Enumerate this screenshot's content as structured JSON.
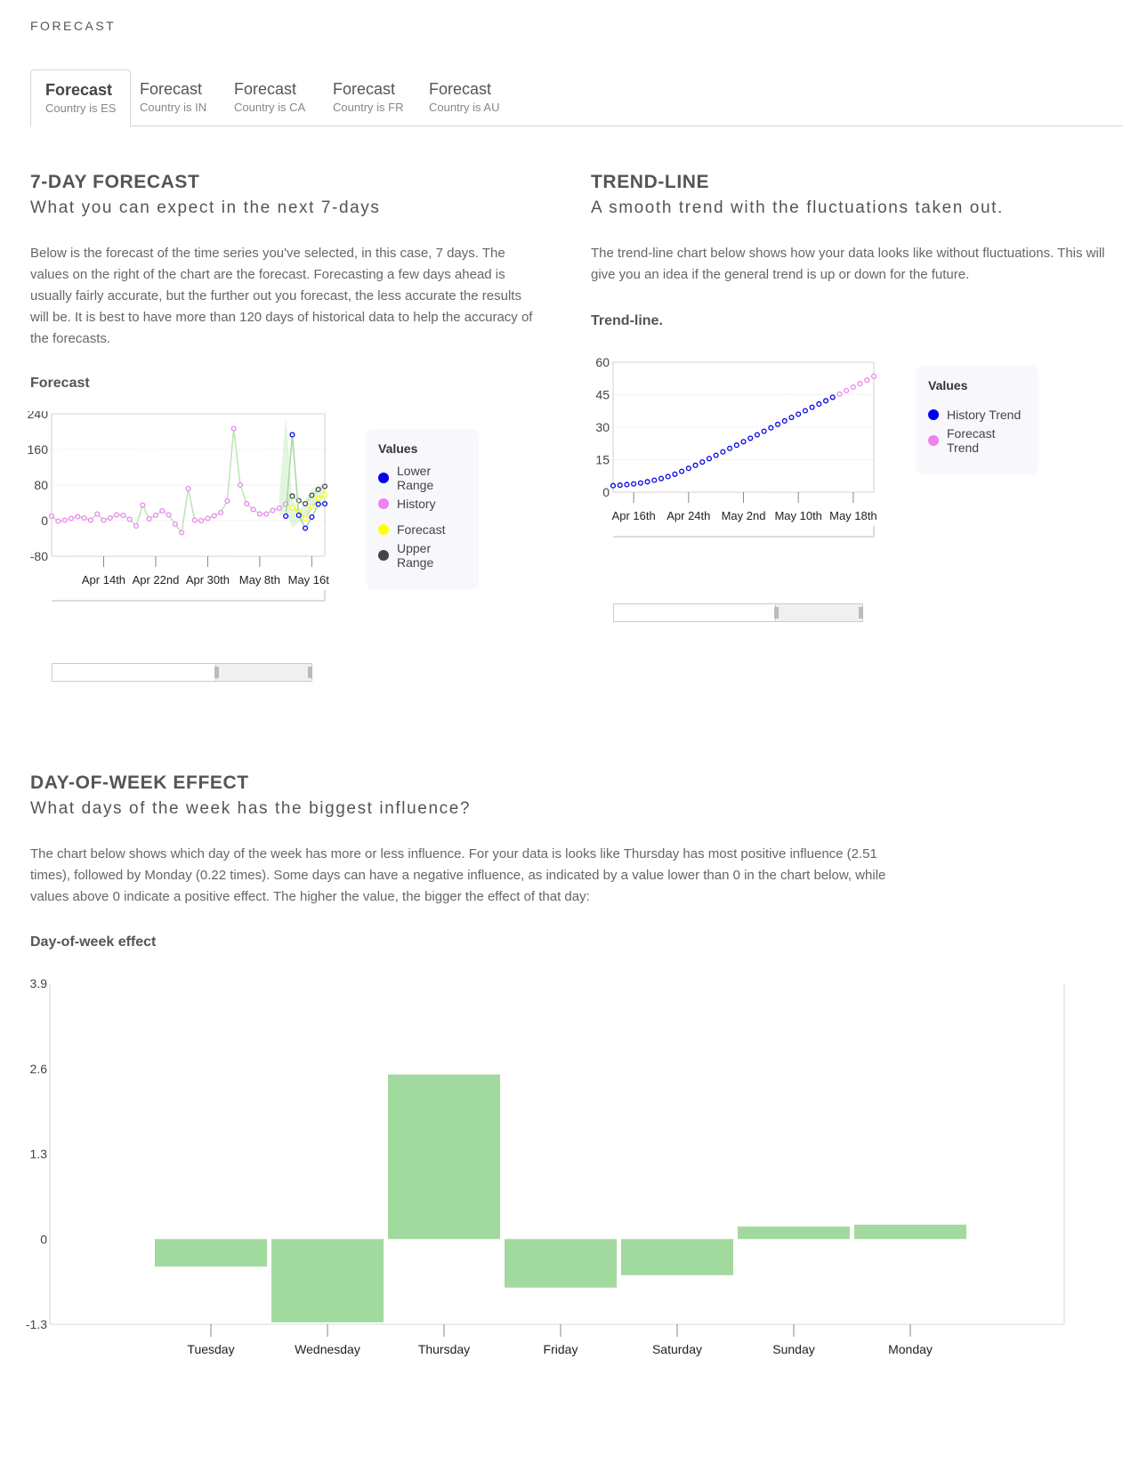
{
  "page": {
    "title": "FORECAST"
  },
  "tabs": [
    {
      "title": "Forecast",
      "subtitle": "Country is ES",
      "active": true
    },
    {
      "title": "Forecast",
      "subtitle": "Country is IN",
      "active": false
    },
    {
      "title": "Forecast",
      "subtitle": "Country is CA",
      "active": false
    },
    {
      "title": "Forecast",
      "subtitle": "Country is FR",
      "active": false
    },
    {
      "title": "Forecast",
      "subtitle": "Country is AU",
      "active": false
    }
  ],
  "forecast_section": {
    "heading": "7-DAY FORECAST",
    "subheading": "What you can expect in the next 7-days",
    "description": "Below is the forecast of the time series you've selected, in this case, 7 days. The values on the right of the chart are the forecast. Forecasting a few days ahead is usually fairly accurate, but the further out you forecast, the less accurate the results will be. It is best to have more than 120 days of historical data to help the accuracy of the forecasts.",
    "chart_title": "Forecast",
    "legend": {
      "title": "Values",
      "items": [
        {
          "label": "Lower Range",
          "color": "#0000ee"
        },
        {
          "label": "History",
          "color": "#ee82ee"
        },
        {
          "label": "Forecast",
          "color": "#ffff00"
        },
        {
          "label": "Upper Range",
          "color": "#444444"
        }
      ]
    }
  },
  "trend_section": {
    "heading": "TREND-LINE",
    "subheading": "A smooth trend with the fluctuations taken out.",
    "description": "The trend-line chart below shows how your data looks like without fluctuations. This will give you an idea if the general trend is up or down for the future.",
    "chart_title": "Trend-line.",
    "legend": {
      "title": "Values",
      "items": [
        {
          "label": "History Trend",
          "color": "#0000ee"
        },
        {
          "label": "Forecast Trend",
          "color": "#ee82ee"
        }
      ]
    }
  },
  "dow_section": {
    "heading": "DAY-OF-WEEK EFFECT",
    "subheading": "What days of the week has the biggest influence?",
    "description": "The chart below shows which day of the week has more or less influence. For your data is looks like Thursday has most positive influence (2.51 times), followed by Monday (0.22 times). Some days can have a negative influence, as indicated by a value lower than 0 in the chart below, while values above 0 indicate a positive effect. The higher the value, the bigger the effect of that day:",
    "chart_title": "Day-of-week effect"
  },
  "chart_data": [
    {
      "id": "forecast",
      "type": "line",
      "ylim": [
        -80,
        240
      ],
      "yticks": [
        -80,
        0,
        80,
        160,
        240
      ],
      "xticks": [
        {
          "day": 8,
          "label": "Apr 14th"
        },
        {
          "day": 16,
          "label": "Apr 22nd"
        },
        {
          "day": 24,
          "label": "Apr 30th"
        },
        {
          "day": 32,
          "label": "May 8th"
        },
        {
          "day": 40,
          "label": "May 16th"
        }
      ],
      "grid": true,
      "legend": "right",
      "series": [
        {
          "name": "History",
          "color": "#ee82ee",
          "x": [
            0,
            1,
            2,
            3,
            4,
            5,
            6,
            7,
            8,
            9,
            10,
            11,
            12,
            13,
            14,
            15,
            16,
            17,
            18,
            19,
            20,
            21,
            22,
            23,
            24,
            25,
            26,
            27,
            28,
            29,
            30,
            31,
            32,
            33,
            34,
            35,
            36,
            37
          ],
          "values": [
            10,
            -1,
            1,
            5,
            9,
            6,
            1,
            15,
            1,
            6,
            13,
            12,
            3,
            -12,
            35,
            4,
            12,
            22,
            13,
            -8,
            -27,
            72,
            1,
            0,
            5,
            11,
            18,
            44,
            207,
            80,
            38,
            25,
            15,
            15,
            23,
            28,
            37,
            56
          ]
        },
        {
          "name": "Forecast",
          "color": "#ffff00",
          "x": [
            37,
            38,
            39,
            40,
            41,
            42
          ],
          "values": [
            29,
            22,
            4,
            30,
            50,
            58
          ]
        },
        {
          "name": "Upper Range",
          "color": "#444444",
          "x": [
            37,
            38,
            39,
            40,
            41,
            42
          ],
          "values": [
            55,
            45,
            38,
            57,
            70,
            77
          ]
        },
        {
          "name": "Lower Range",
          "color": "#0000ee",
          "x": [
            36,
            37,
            38,
            39,
            40,
            41,
            42
          ],
          "values": [
            10,
            193,
            12,
            -17,
            8,
            37,
            38
          ]
        }
      ],
      "band": {
        "x": [
          35,
          36,
          37,
          38,
          39,
          40,
          41,
          42
        ],
        "upper": [
          55,
          235,
          50,
          20,
          45,
          70,
          78,
          80
        ],
        "lower": [
          10,
          20,
          -15,
          -5,
          5,
          30,
          40,
          50
        ]
      }
    },
    {
      "id": "trend",
      "type": "line",
      "ylim": [
        0,
        60
      ],
      "yticks": [
        0,
        15,
        30,
        45,
        60
      ],
      "xticks": [
        {
          "day": 3,
          "label": "Apr 16th"
        },
        {
          "day": 11,
          "label": "Apr 24th"
        },
        {
          "day": 19,
          "label": "May 2nd"
        },
        {
          "day": 27,
          "label": "May 10th"
        },
        {
          "day": 35,
          "label": "May 18th"
        }
      ],
      "grid": true,
      "legend": "right",
      "series": [
        {
          "name": "History Trend",
          "color": "#0000ee",
          "x": [
            0,
            1,
            2,
            3,
            4,
            5,
            6,
            7,
            8,
            9,
            10,
            11,
            12,
            13,
            14,
            15,
            16,
            17,
            18,
            19,
            20,
            21,
            22,
            23,
            24,
            25,
            26,
            27,
            28,
            29,
            30,
            31,
            32
          ],
          "values": [
            3.0,
            3.2,
            3.5,
            3.8,
            4.2,
            4.8,
            5.5,
            6.3,
            7.2,
            8.3,
            9.6,
            11.0,
            12.4,
            13.9,
            15.5,
            17.0,
            18.6,
            20.2,
            21.7,
            23.3,
            24.9,
            26.5,
            28.1,
            29.7,
            31.3,
            32.9,
            34.5,
            36.0,
            37.6,
            39.2,
            40.7,
            42.2,
            43.8
          ]
        },
        {
          "name": "Forecast Trend",
          "color": "#ee82ee",
          "x": [
            33,
            34,
            35,
            36,
            37,
            38
          ],
          "values": [
            45.3,
            46.9,
            48.5,
            50.1,
            51.7,
            53.5
          ]
        }
      ]
    },
    {
      "id": "day-of-week",
      "type": "bar",
      "categories": [
        "Tuesday",
        "Wednesday",
        "Thursday",
        "Friday",
        "Saturday",
        "Sunday",
        "Monday"
      ],
      "values": [
        -0.42,
        -1.27,
        2.51,
        -0.74,
        -0.55,
        0.19,
        0.22
      ],
      "ylim": [
        -1.3,
        3.9
      ],
      "yticks": [
        -1.3,
        0,
        1.3,
        2.6,
        3.9
      ],
      "color": "#a2d99e"
    }
  ]
}
